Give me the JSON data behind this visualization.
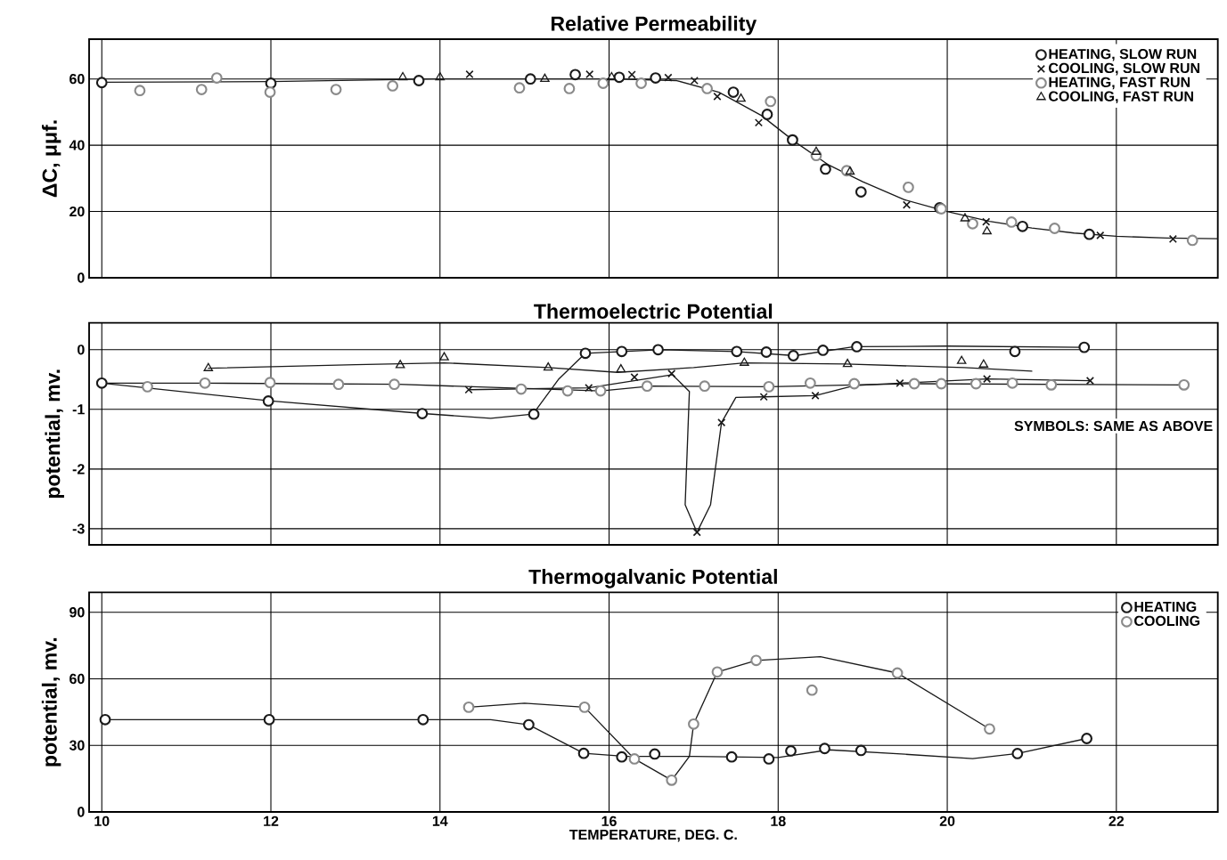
{
  "chart_data": [
    {
      "type": "scatter",
      "title": "Relative Permeability",
      "ylabel": "ΔC, μμf.",
      "xlim": [
        9.85,
        23.2
      ],
      "xticks": [
        10,
        12,
        14,
        16,
        18,
        20,
        22
      ],
      "ylim": [
        0,
        72
      ],
      "yticks": [
        0,
        20,
        40,
        60
      ],
      "grid": true,
      "legend": "top right",
      "tick_labels": "y",
      "series": [
        {
          "name": "HEATING, SLOW RUN",
          "marker": "circle",
          "color": "#1a1a1a",
          "x": [
            10.0,
            12.0,
            13.75,
            15.07,
            15.6,
            16.12,
            16.55,
            17.47,
            17.87,
            18.17,
            18.56,
            18.98,
            19.91,
            20.89,
            21.68
          ],
          "values": [
            58.9,
            58.7,
            59.5,
            60.0,
            61.3,
            60.5,
            60.3,
            56.0,
            49.3,
            41.6,
            32.8,
            25.9,
            21.1,
            15.5,
            13.1
          ]
        },
        {
          "name": "COOLING, SLOW RUN",
          "marker": "cross",
          "color": "#1a1a1a",
          "x": [
            14.35,
            15.77,
            16.27,
            16.7,
            17.01,
            17.28,
            17.77,
            19.52,
            20.46,
            21.81,
            22.67
          ],
          "values": [
            61.4,
            61.4,
            61.3,
            60.4,
            59.5,
            54.7,
            46.8,
            22.0,
            16.9,
            12.8,
            11.7
          ]
        },
        {
          "name": "HEATING, FAST RUN",
          "marker": "circle",
          "color": "#8a8a8a",
          "x": [
            10.45,
            11.18,
            11.36,
            11.99,
            12.77,
            13.44,
            14.94,
            15.53,
            15.93,
            16.38,
            17.16,
            17.91,
            18.45,
            18.81,
            19.54,
            19.93,
            20.3,
            20.76,
            21.27,
            22.9
          ],
          "values": [
            56.5,
            56.8,
            60.3,
            56.0,
            56.8,
            57.9,
            57.3,
            57.1,
            58.7,
            58.7,
            57.1,
            53.2,
            36.9,
            32.3,
            27.3,
            20.8,
            16.3,
            16.8,
            14.9,
            11.3
          ]
        },
        {
          "name": "COOLING, FAST RUN",
          "marker": "triangle",
          "color": "#1a1a1a",
          "x": [
            13.56,
            14.0,
            15.24,
            16.03,
            17.56,
            18.45,
            18.85,
            20.21,
            20.47
          ],
          "values": [
            60.5,
            60.5,
            60.0,
            60.5,
            54.0,
            38.0,
            32.0,
            17.9,
            14.0
          ]
        },
        {
          "type": "line",
          "marker": "none",
          "color": "#1a1a1a",
          "x": [
            10,
            12,
            14,
            16,
            16.8,
            17.3,
            17.8,
            18.2,
            18.6,
            19.0,
            19.5,
            20,
            20.5,
            21,
            21.5,
            22,
            22.6,
            23.2
          ],
          "values": [
            59,
            59.2,
            60,
            60,
            59.5,
            56,
            49,
            41,
            34,
            29,
            23.5,
            20,
            17,
            15,
            13.5,
            12.5,
            12,
            11.8
          ]
        }
      ]
    },
    {
      "type": "scatter",
      "title": "Thermoelectric Potential",
      "ylabel": "potential, mv.",
      "xlim": [
        9.85,
        23.2
      ],
      "xticks": [
        10,
        12,
        14,
        16,
        18,
        20,
        22
      ],
      "ylim": [
        -3.27,
        0.45
      ],
      "yticks": [
        -3,
        -2,
        -1,
        0
      ],
      "grid": true,
      "tick_labels": "y",
      "annotations": [
        "SYMBOLS: SAME AS ABOVE"
      ],
      "series": [
        {
          "marker": "circle",
          "color": "#1a1a1a",
          "x": [
            10.0,
            11.97,
            13.79,
            15.11,
            15.72,
            16.15,
            16.58,
            17.51,
            17.86,
            18.18,
            18.53,
            18.93,
            20.8,
            21.62
          ],
          "values": [
            -0.56,
            -0.86,
            -1.07,
            -1.08,
            -0.06,
            -0.03,
            0,
            -0.03,
            -0.04,
            -0.1,
            -0.01,
            0.05,
            -0.03,
            0.04
          ]
        },
        {
          "marker": "cross",
          "color": "#1a1a1a",
          "x": [
            14.34,
            15.76,
            16.3,
            16.74,
            17.04,
            17.33,
            17.83,
            18.44,
            19.44,
            20.47,
            21.69
          ],
          "values": [
            -0.67,
            -0.64,
            -0.46,
            -0.4,
            -3.06,
            -1.22,
            -0.79,
            -0.77,
            -0.56,
            -0.49,
            -0.52
          ]
        },
        {
          "marker": "circle",
          "color": "#8a8a8a",
          "x": [
            10.54,
            11.22,
            11.99,
            12.8,
            13.46,
            14.96,
            15.51,
            15.9,
            16.45,
            17.13,
            17.89,
            18.38,
            18.9,
            19.61,
            19.93,
            20.34,
            20.77,
            21.23,
            22.8
          ],
          "values": [
            -0.62,
            -0.56,
            -0.55,
            -0.58,
            -0.58,
            -0.66,
            -0.69,
            -0.69,
            -0.61,
            -0.61,
            -0.62,
            -0.56,
            -0.57,
            -0.57,
            -0.57,
            -0.57,
            -0.56,
            -0.59,
            -0.59
          ]
        },
        {
          "marker": "triangle",
          "color": "#1a1a1a",
          "x": [
            11.26,
            13.53,
            14.05,
            15.28,
            16.14,
            17.6,
            18.82,
            20.17,
            20.43
          ],
          "values": [
            -0.31,
            -0.26,
            -0.13,
            -0.3,
            -0.33,
            -0.22,
            -0.24,
            -0.19,
            -0.25
          ]
        },
        {
          "type": "line",
          "marker": "none",
          "color": "#1a1a1a",
          "x": [
            10,
            12,
            13.8,
            14.6,
            15.1,
            15.4,
            15.72,
            16.6,
            17.5,
            18.2,
            18.9,
            20,
            21.6
          ],
          "values": [
            -0.56,
            -0.86,
            -1.07,
            -1.15,
            -1.08,
            -0.5,
            -0.06,
            0,
            -0.03,
            -0.1,
            0.05,
            0.06,
            0.04
          ]
        },
        {
          "type": "line",
          "marker": "none",
          "color": "#1a1a1a",
          "x": [
            11.26,
            13,
            14.05,
            15.28,
            16.1,
            17,
            17.6,
            18.8,
            20.2,
            21
          ],
          "values": [
            -0.31,
            -0.25,
            -0.22,
            -0.3,
            -0.38,
            -0.3,
            -0.22,
            -0.24,
            -0.3,
            -0.36
          ]
        },
        {
          "type": "line",
          "marker": "none",
          "color": "#1a1a1a",
          "x": [
            10,
            11.2,
            13.5,
            15.9,
            16.5,
            17.9,
            19.6,
            22.8
          ],
          "values": [
            -0.56,
            -0.56,
            -0.58,
            -0.69,
            -0.61,
            -0.62,
            -0.57,
            -0.59
          ]
        },
        {
          "type": "line",
          "marker": "none",
          "color": "#1a1a1a",
          "x": [
            14.34,
            15.76,
            16.75,
            16.95,
            16.9,
            17.04,
            17.2,
            17.33,
            17.5,
            17.83,
            18.44,
            18.9,
            19.44,
            20.47,
            21.69
          ],
          "values": [
            -0.67,
            -0.64,
            -0.42,
            -0.7,
            -2.6,
            -3.06,
            -2.6,
            -1.22,
            -0.8,
            -0.79,
            -0.77,
            -0.6,
            -0.56,
            -0.49,
            -0.52
          ]
        }
      ]
    },
    {
      "type": "scatter",
      "title": "Thermogalvanic Potential",
      "xlabel": "TEMPERATURE, DEG. C.",
      "ylabel": "potential, mv.",
      "xlim": [
        9.85,
        23.2
      ],
      "xticks": [
        10,
        12,
        14,
        16,
        18,
        20,
        22
      ],
      "ylim": [
        0,
        99
      ],
      "yticks": [
        0,
        30,
        60,
        90
      ],
      "grid": true,
      "legend": "top right",
      "series": [
        {
          "name": "HEATING",
          "marker": "circle",
          "color": "#1a1a1a",
          "x": [
            10.04,
            11.98,
            13.8,
            15.05,
            15.7,
            16.15,
            16.54,
            17.45,
            17.89,
            18.15,
            18.55,
            18.98,
            20.83,
            21.65
          ],
          "values": [
            41.6,
            41.6,
            41.6,
            39.3,
            26.4,
            24.8,
            26.1,
            24.8,
            23.9,
            27.5,
            28.6,
            27.7,
            26.3,
            33.1
          ]
        },
        {
          "name": "COOLING",
          "marker": "circle",
          "color": "#8a8a8a",
          "x": [
            14.34,
            15.71,
            16.3,
            16.74,
            17.0,
            17.28,
            17.74,
            18.4,
            19.41,
            20.5
          ],
          "values": [
            47.2,
            47.2,
            23.9,
            14.3,
            39.6,
            63.1,
            68.3,
            54.9,
            62.6,
            37.4
          ]
        },
        {
          "type": "line",
          "marker": "none",
          "color": "#1a1a1a",
          "x": [
            10.04,
            14.6,
            15.05,
            15.7,
            16.2,
            17,
            18,
            18.6,
            19.5,
            20.3,
            20.83,
            21.65
          ],
          "values": [
            41.6,
            41.6,
            39.3,
            26.4,
            25,
            25,
            24.5,
            28,
            26,
            24,
            26.3,
            33.1
          ]
        },
        {
          "type": "line",
          "marker": "none",
          "color": "#1a1a1a",
          "x": [
            14.34,
            15,
            15.71,
            16.3,
            16.74,
            16.95,
            17.0,
            17.28,
            17.74,
            18.5,
            19.41,
            20.5
          ],
          "values": [
            47.2,
            49,
            47.2,
            23.9,
            14.3,
            25,
            39.6,
            63.1,
            68.3,
            70,
            62.6,
            37.4
          ]
        }
      ]
    }
  ]
}
